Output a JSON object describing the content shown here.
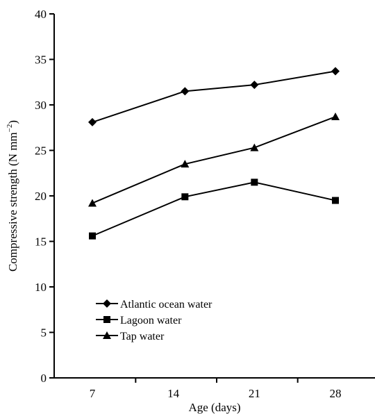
{
  "chart_data": {
    "type": "line",
    "title": "",
    "xlabel": "Age (days)",
    "ylabel": "Compressive strength (N mm⁻²)",
    "ylabel_main": "Compressive strength (N mm",
    "ylabel_sup": "−2",
    "ylabel_close": ")",
    "ylim": [
      0,
      40
    ],
    "yticks": [
      0,
      5,
      10,
      15,
      20,
      25,
      30,
      35,
      40
    ],
    "xticks": [
      7,
      14,
      21,
      28
    ],
    "grid": false,
    "legend_position": "lower-left",
    "series": [
      {
        "name": "Atlantic ocean water",
        "marker": "diamond",
        "color": "#000000",
        "points": [
          {
            "x": 7,
            "y": 28.1
          },
          {
            "x": 15,
            "y": 31.5
          },
          {
            "x": 21,
            "y": 32.2
          },
          {
            "x": 28,
            "y": 33.7
          }
        ]
      },
      {
        "name": "Lagoon water",
        "marker": "square",
        "color": "#000000",
        "points": [
          {
            "x": 7,
            "y": 15.6
          },
          {
            "x": 15,
            "y": 19.9
          },
          {
            "x": 21,
            "y": 21.5
          },
          {
            "x": 28,
            "y": 19.5
          }
        ]
      },
      {
        "name": "Tap water",
        "marker": "triangle",
        "color": "#000000",
        "points": [
          {
            "x": 7,
            "y": 19.2
          },
          {
            "x": 15,
            "y": 23.5
          },
          {
            "x": 21,
            "y": 25.3
          },
          {
            "x": 28,
            "y": 28.7
          }
        ]
      }
    ]
  }
}
